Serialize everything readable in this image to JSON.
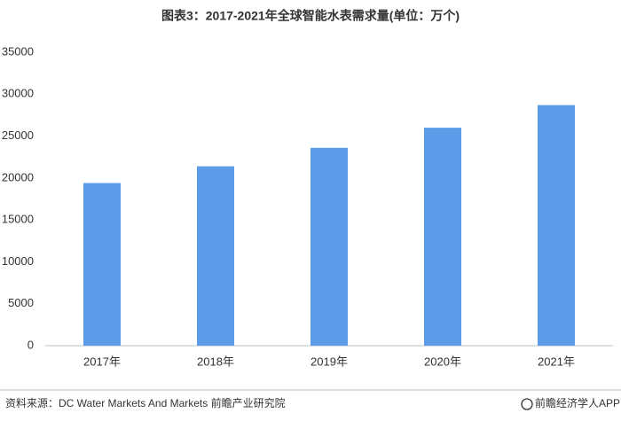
{
  "chart_data": {
    "type": "bar",
    "title": "图表3：2017-2021年全球智能水表需求量(单位：万个)",
    "categories": [
      "2017年",
      "2018年",
      "2019年",
      "2020年",
      "2021年"
    ],
    "values": [
      19400,
      21400,
      23600,
      26000,
      28700
    ],
    "color": "#5b9be8",
    "ylim": [
      0,
      35000
    ],
    "yticks": [
      0,
      5000,
      10000,
      15000,
      20000,
      25000,
      30000,
      35000
    ],
    "grid": false,
    "source": "资料来源：DC Water Markets And Markets 前瞻产业研究院",
    "credit": "前瞻经济学人APP"
  }
}
